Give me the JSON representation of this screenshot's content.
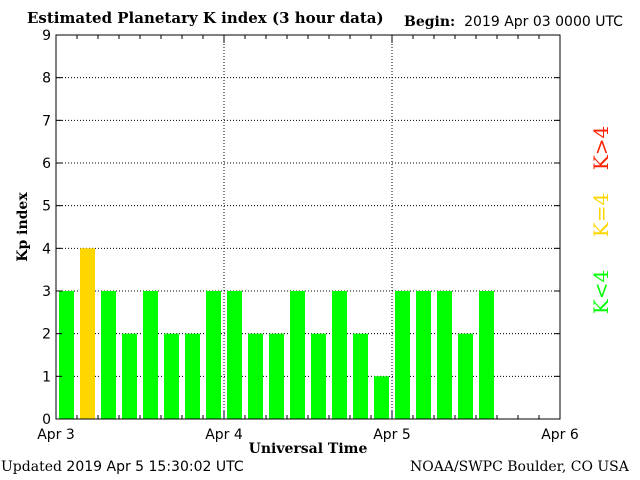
{
  "header": {
    "title": "Estimated Planetary K index (3 hour data)",
    "begin_label": "Begin:",
    "begin_value": "2019 Apr 03 0000 UTC"
  },
  "footer": {
    "updated_label": "Updated",
    "updated_value": "2019 Apr  5 15:30:02 UTC",
    "source": "NOAA/SWPC Boulder, CO USA"
  },
  "colors": {
    "below4": "#00ff00",
    "equal4": "#ffd700",
    "above4": "#ff2000"
  },
  "legend": [
    {
      "label": "K<4",
      "color": "#00ff00"
    },
    {
      "label": "K=4",
      "color": "#ffd700"
    },
    {
      "label": "K>4",
      "color": "#ff2000"
    }
  ],
  "chart_data": {
    "type": "bar",
    "title": "Estimated Planetary K index (3 hour data)",
    "xlabel": "Universal Time",
    "ylabel": "Kp index",
    "ylim": [
      0,
      9
    ],
    "yticks": [
      "0",
      "1",
      "2",
      "3",
      "4",
      "5",
      "6",
      "7",
      "8",
      "9"
    ],
    "xticks": [
      "Apr 3",
      "Apr 4",
      "Apr 5",
      "Apr 6"
    ],
    "grid": true,
    "bins_per_day": 8,
    "values": [
      3,
      4,
      3,
      2,
      3,
      2,
      2,
      3,
      3,
      2,
      2,
      3,
      2,
      3,
      2,
      1,
      3,
      3,
      3,
      2,
      3
    ]
  }
}
